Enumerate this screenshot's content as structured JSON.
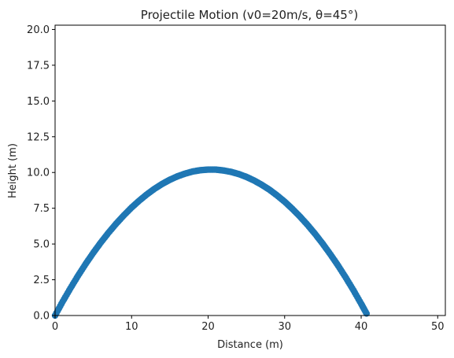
{
  "chart_data": {
    "type": "scatter",
    "title": "Projectile Motion (v0=20m/s, θ=45°)",
    "xlabel": "Distance (m)",
    "ylabel": "Height (m)",
    "xlim": [
      0,
      51
    ],
    "ylim": [
      0,
      20.3
    ],
    "xticks": [
      0,
      10,
      20,
      30,
      40,
      50
    ],
    "xtick_labels": [
      "0",
      "10",
      "20",
      "30",
      "40",
      "50"
    ],
    "yticks": [
      0,
      2.5,
      5,
      7.5,
      10,
      12.5,
      15,
      17.5,
      20
    ],
    "ytick_labels": [
      "0.0",
      "2.5",
      "5.0",
      "7.5",
      "10.0",
      "12.5",
      "15.0",
      "17.5",
      "20.0"
    ],
    "grid": false,
    "marker_color": "#1f77b4",
    "series": [
      {
        "x": [
          0.0,
          1.0,
          2.0,
          3.0,
          4.0,
          5.0,
          6.0,
          7.0,
          8.0,
          9.0,
          10.0,
          11.0,
          12.0,
          13.0,
          14.0,
          15.0,
          16.0,
          17.0,
          18.0,
          19.0,
          20.0,
          21.0,
          22.0,
          23.0,
          24.0,
          25.0,
          26.0,
          27.0,
          28.0,
          29.0,
          30.0,
          31.0,
          32.0,
          33.0,
          34.0,
          35.0,
          36.0,
          37.0,
          38.0,
          39.0,
          40.0,
          40.7
        ],
        "y": [
          0.0,
          0.98,
          1.9,
          2.78,
          3.61,
          4.39,
          5.12,
          5.8,
          6.43,
          7.01,
          7.55,
          8.03,
          8.47,
          8.86,
          9.2,
          9.49,
          9.73,
          9.92,
          10.07,
          10.16,
          10.2,
          10.2,
          10.14,
          10.04,
          9.89,
          9.69,
          9.44,
          9.14,
          8.8,
          8.4,
          7.96,
          7.46,
          6.92,
          6.33,
          5.69,
          5.0,
          4.26,
          3.48,
          2.64,
          1.76,
          0.82,
          0.14
        ]
      }
    ]
  }
}
